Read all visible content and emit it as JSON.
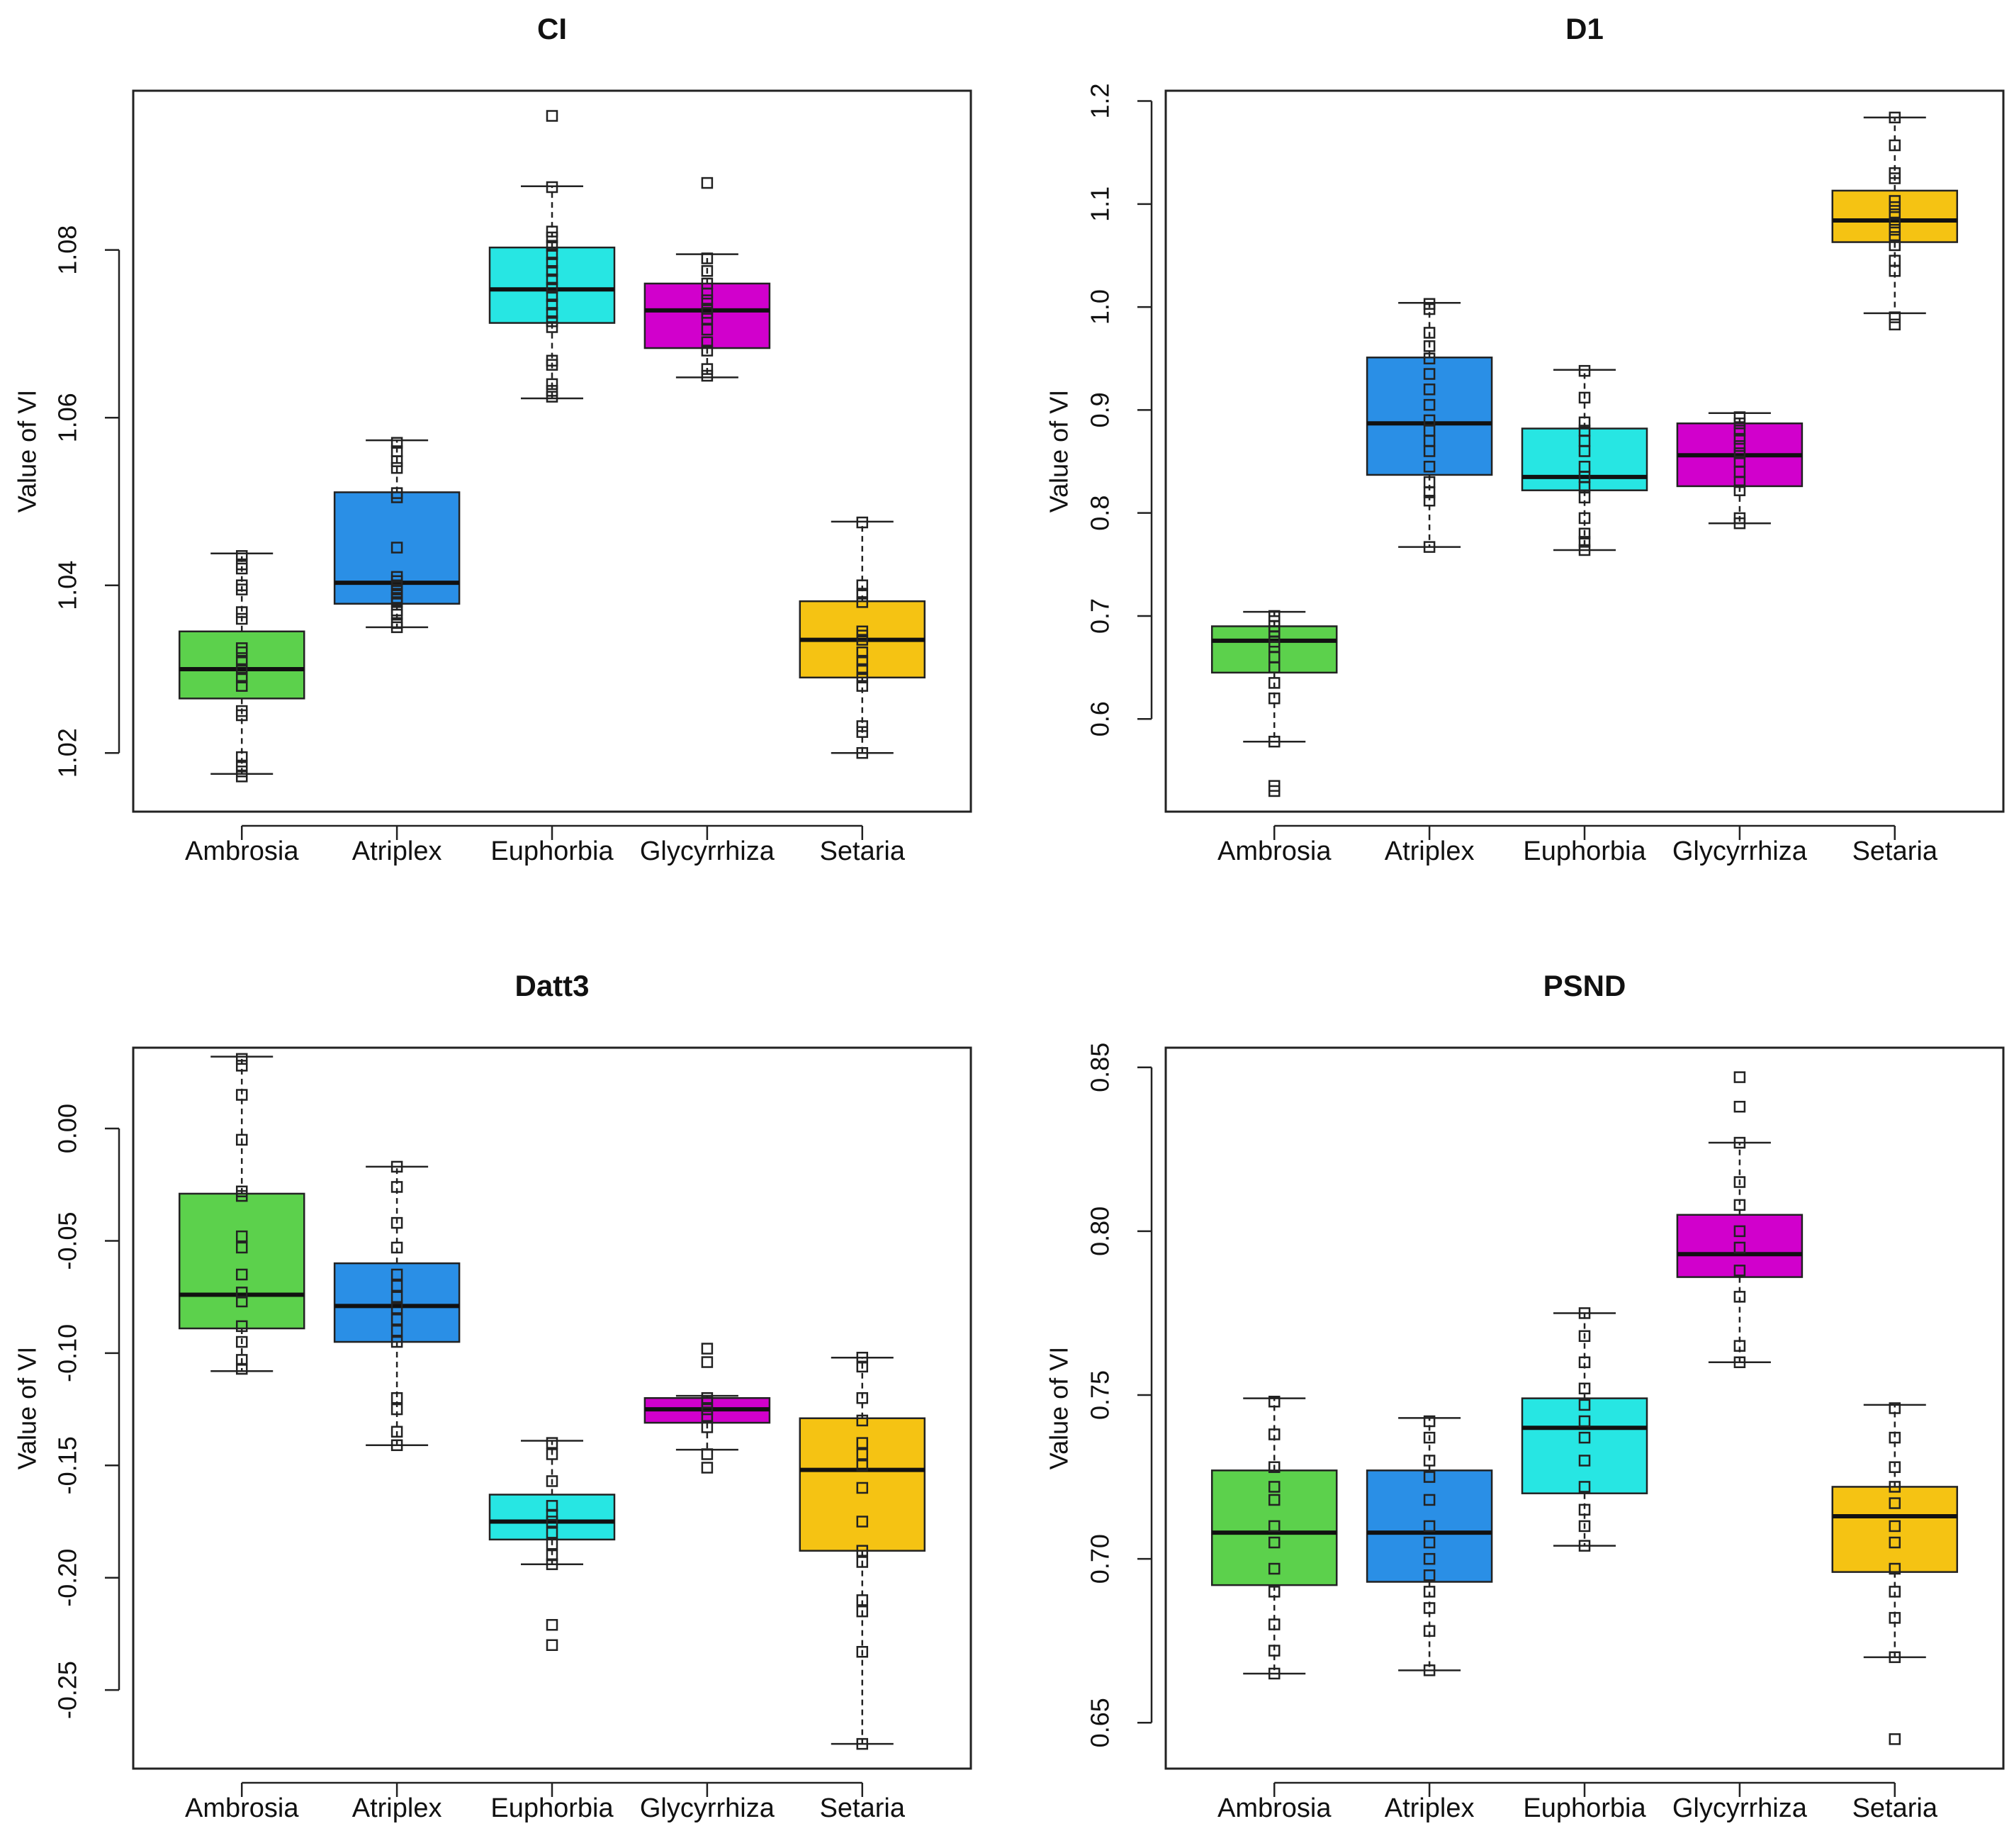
{
  "figure": {
    "panel_order": [
      "top-left",
      "top-right",
      "bottom-left",
      "bottom-right"
    ]
  },
  "chart_data": [
    {
      "type": "boxplot",
      "title": "CI",
      "ylabel": "Value of VI",
      "categories": [
        "Ambrosia",
        "Atriplex",
        "Euphorbia",
        "Glycyrrhiza",
        "Setaria"
      ],
      "colors": [
        "#5cd14c",
        "#2a8fe6",
        "#27e6e3",
        "#d100cc",
        "#f5c313"
      ],
      "ylim": [
        1.013,
        1.099
      ],
      "yticks": [
        1.02,
        1.04,
        1.06,
        1.08
      ],
      "ytick_labels": [
        "1.02",
        "1.04",
        "1.06",
        "1.08"
      ],
      "boxes": [
        {
          "whisker_low": 1.0175,
          "q1": 1.0265,
          "median": 1.03,
          "q3": 1.0345,
          "whisker_high": 1.0438,
          "points": [
            1.0172,
            1.0178,
            1.0185,
            1.0195,
            1.0245,
            1.025,
            1.028,
            1.029,
            1.03,
            1.031,
            1.032,
            1.0325,
            1.036,
            1.0368,
            1.0395,
            1.04,
            1.042,
            1.0425,
            1.0435
          ]
        },
        {
          "whisker_low": 1.035,
          "q1": 1.0378,
          "median": 1.0403,
          "q3": 1.0511,
          "whisker_high": 1.0573,
          "points": [
            1.035,
            1.0355,
            1.0365,
            1.037,
            1.038,
            1.0385,
            1.039,
            1.0395,
            1.04,
            1.0405,
            1.041,
            1.0445,
            1.0505,
            1.051,
            1.054,
            1.0548,
            1.056,
            1.057
          ]
        },
        {
          "whisker_low": 1.0623,
          "q1": 1.0713,
          "median": 1.0753,
          "q3": 1.0803,
          "whisker_high": 1.0876,
          "points": [
            1.0625,
            1.0632,
            1.064,
            1.0663,
            1.0668,
            1.0708,
            1.0715,
            1.0725,
            1.0735,
            1.0745,
            1.0755,
            1.0765,
            1.0775,
            1.0785,
            1.0795,
            1.0805,
            1.0815,
            1.0822,
            1.0875,
            1.096
          ]
        },
        {
          "whisker_low": 1.0648,
          "q1": 1.0683,
          "median": 1.0728,
          "q3": 1.076,
          "whisker_high": 1.0795,
          "points": [
            1.065,
            1.0658,
            1.068,
            1.069,
            1.0705,
            1.0718,
            1.0725,
            1.073,
            1.074,
            1.0748,
            1.076,
            1.0775,
            1.079,
            1.088
          ]
        },
        {
          "whisker_low": 1.02,
          "q1": 1.029,
          "median": 1.0335,
          "q3": 1.0381,
          "whisker_high": 1.0476,
          "points": [
            1.02,
            1.0225,
            1.0232,
            1.028,
            1.029,
            1.03,
            1.031,
            1.032,
            1.0335,
            1.034,
            1.0345,
            1.038,
            1.039,
            1.04,
            1.0475
          ]
        }
      ]
    },
    {
      "type": "boxplot",
      "title": "D1",
      "ylabel": "Value of VI",
      "categories": [
        "Ambrosia",
        "Atriplex",
        "Euphorbia",
        "Glycyrrhiza",
        "Setaria"
      ],
      "colors": [
        "#5cd14c",
        "#2a8fe6",
        "#27e6e3",
        "#d100cc",
        "#f5c313"
      ],
      "ylim": [
        0.51,
        1.21
      ],
      "yticks": [
        0.6,
        0.7,
        0.8,
        0.9,
        1.0,
        1.1,
        1.2
      ],
      "ytick_labels": [
        "0.6",
        "0.7",
        "0.8",
        "0.9",
        "1.0",
        "1.1",
        "1.2"
      ],
      "boxes": [
        {
          "whisker_low": 0.578,
          "q1": 0.645,
          "median": 0.676,
          "q3": 0.69,
          "whisker_high": 0.704,
          "points": [
            0.53,
            0.535,
            0.578,
            0.62,
            0.635,
            0.65,
            0.66,
            0.67,
            0.675,
            0.68,
            0.685,
            0.69,
            0.695,
            0.7
          ]
        },
        {
          "whisker_low": 0.767,
          "q1": 0.837,
          "median": 0.887,
          "q3": 0.951,
          "whisker_high": 1.004,
          "points": [
            0.767,
            0.812,
            0.82,
            0.83,
            0.845,
            0.86,
            0.87,
            0.88,
            0.89,
            0.905,
            0.92,
            0.935,
            0.95,
            0.962,
            0.975,
            0.998,
            1.003
          ]
        },
        {
          "whisker_low": 0.764,
          "q1": 0.822,
          "median": 0.835,
          "q3": 0.882,
          "whisker_high": 0.939,
          "points": [
            0.764,
            0.772,
            0.78,
            0.795,
            0.815,
            0.825,
            0.835,
            0.845,
            0.86,
            0.87,
            0.88,
            0.888,
            0.912,
            0.938
          ]
        },
        {
          "whisker_low": 0.79,
          "q1": 0.826,
          "median": 0.856,
          "q3": 0.887,
          "whisker_high": 0.897,
          "points": [
            0.79,
            0.795,
            0.822,
            0.83,
            0.84,
            0.85,
            0.858,
            0.865,
            0.872,
            0.88,
            0.887,
            0.893
          ]
        },
        {
          "whisker_low": 0.994,
          "q1": 1.063,
          "median": 1.084,
          "q3": 1.113,
          "whisker_high": 1.184,
          "points": [
            0.983,
            0.99,
            1.035,
            1.045,
            1.06,
            1.068,
            1.075,
            1.082,
            1.09,
            1.097,
            1.103,
            1.125,
            1.13,
            1.157,
            1.184
          ]
        }
      ]
    },
    {
      "type": "boxplot",
      "title": "Datt3",
      "ylabel": "Value of VI",
      "categories": [
        "Ambrosia",
        "Atriplex",
        "Euphorbia",
        "Glycyrrhiza",
        "Setaria"
      ],
      "colors": [
        "#5cd14c",
        "#2a8fe6",
        "#27e6e3",
        "#d100cc",
        "#f5c313"
      ],
      "ylim": [
        -0.285,
        0.036
      ],
      "yticks": [
        0.0,
        -0.05,
        -0.1,
        -0.15,
        -0.2,
        -0.25
      ],
      "ytick_labels": [
        "0.00",
        "-0.05",
        "-0.10",
        "-0.15",
        "-0.20",
        "-0.25"
      ],
      "boxes": [
        {
          "whisker_low": -0.108,
          "q1": -0.089,
          "median": -0.074,
          "q3": -0.029,
          "whisker_high": 0.032,
          "points": [
            -0.107,
            -0.103,
            -0.095,
            -0.088,
            -0.077,
            -0.073,
            -0.065,
            -0.053,
            -0.048,
            -0.03,
            -0.028,
            -0.005,
            0.015,
            0.028,
            0.031
          ]
        },
        {
          "whisker_low": -0.141,
          "q1": -0.095,
          "median": -0.079,
          "q3": -0.06,
          "whisker_high": -0.017,
          "points": [
            -0.141,
            -0.135,
            -0.125,
            -0.12,
            -0.095,
            -0.09,
            -0.085,
            -0.08,
            -0.075,
            -0.07,
            -0.065,
            -0.053,
            -0.042,
            -0.026,
            -0.017
          ]
        },
        {
          "whisker_low": -0.194,
          "q1": -0.183,
          "median": -0.175,
          "q3": -0.163,
          "whisker_high": -0.139,
          "points": [
            -0.23,
            -0.221,
            -0.194,
            -0.19,
            -0.185,
            -0.18,
            -0.175,
            -0.172,
            -0.168,
            -0.157,
            -0.145,
            -0.14
          ]
        },
        {
          "whisker_low": -0.143,
          "q1": -0.131,
          "median": -0.125,
          "q3": -0.12,
          "whisker_high": -0.119,
          "points": [
            -0.151,
            -0.145,
            -0.133,
            -0.128,
            -0.125,
            -0.122,
            -0.12,
            -0.104,
            -0.098
          ]
        },
        {
          "whisker_low": -0.274,
          "q1": -0.188,
          "median": -0.152,
          "q3": -0.129,
          "whisker_high": -0.102,
          "points": [
            -0.274,
            -0.233,
            -0.215,
            -0.21,
            -0.193,
            -0.188,
            -0.175,
            -0.16,
            -0.15,
            -0.145,
            -0.14,
            -0.13,
            -0.12,
            -0.106,
            -0.102
          ]
        }
      ]
    },
    {
      "type": "boxplot",
      "title": "PSND",
      "ylabel": "Value of VI",
      "categories": [
        "Ambrosia",
        "Atriplex",
        "Euphorbia",
        "Glycyrrhiza",
        "Setaria"
      ],
      "colors": [
        "#5cd14c",
        "#2a8fe6",
        "#27e6e3",
        "#d100cc",
        "#f5c313"
      ],
      "ylim": [
        0.636,
        0.856
      ],
      "yticks": [
        0.65,
        0.7,
        0.75,
        0.8,
        0.85
      ],
      "ytick_labels": [
        "0.65",
        "0.70",
        "0.75",
        "0.80",
        "0.85"
      ],
      "boxes": [
        {
          "whisker_low": 0.665,
          "q1": 0.692,
          "median": 0.708,
          "q3": 0.727,
          "whisker_high": 0.749,
          "points": [
            0.665,
            0.672,
            0.68,
            0.69,
            0.697,
            0.705,
            0.71,
            0.718,
            0.722,
            0.728,
            0.738,
            0.748
          ]
        },
        {
          "whisker_low": 0.666,
          "q1": 0.693,
          "median": 0.708,
          "q3": 0.727,
          "whisker_high": 0.743,
          "points": [
            0.666,
            0.678,
            0.685,
            0.69,
            0.695,
            0.7,
            0.705,
            0.71,
            0.718,
            0.725,
            0.73,
            0.737,
            0.742
          ]
        },
        {
          "whisker_low": 0.704,
          "q1": 0.72,
          "median": 0.74,
          "q3": 0.749,
          "whisker_high": 0.775,
          "points": [
            0.704,
            0.71,
            0.715,
            0.722,
            0.73,
            0.737,
            0.742,
            0.747,
            0.752,
            0.76,
            0.768,
            0.775
          ]
        },
        {
          "whisker_low": 0.76,
          "q1": 0.786,
          "median": 0.793,
          "q3": 0.805,
          "whisker_high": 0.827,
          "points": [
            0.76,
            0.765,
            0.78,
            0.788,
            0.795,
            0.8,
            0.808,
            0.815,
            0.827,
            0.838,
            0.847
          ]
        },
        {
          "whisker_low": 0.67,
          "q1": 0.696,
          "median": 0.713,
          "q3": 0.722,
          "whisker_high": 0.747,
          "points": [
            0.645,
            0.67,
            0.682,
            0.69,
            0.697,
            0.705,
            0.71,
            0.717,
            0.722,
            0.728,
            0.737,
            0.746
          ]
        }
      ]
    }
  ]
}
